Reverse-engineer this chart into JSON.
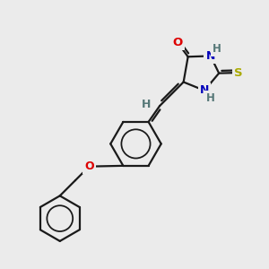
{
  "bg_color": "#ebebeb",
  "bond_color": "#1a1a1a",
  "bond_width": 1.6,
  "colors": {
    "O": "#dd0000",
    "N": "#0000bb",
    "S": "#aaaa00",
    "C": "#1a1a1a",
    "H": "#557777"
  },
  "layout": {
    "xmin": 0,
    "xmax": 10,
    "ymin": 0,
    "ymax": 10
  }
}
